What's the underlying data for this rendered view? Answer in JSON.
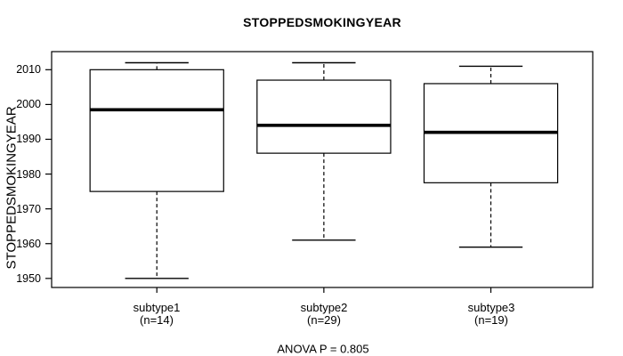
{
  "chart_data": {
    "type": "boxplot",
    "title": "STOPPEDSMOKINGYEAR",
    "ylabel": "STOPPEDSMOKINGYEAR",
    "footer": "ANOVA P = 0.805",
    "yticks": [
      2010,
      2000,
      1990,
      1980,
      1970,
      1960,
      1950
    ],
    "ylim": [
      1947.4,
      2015.2
    ],
    "xlim": [
      0.37,
      3.61
    ],
    "grid": false,
    "box_width": 0.8,
    "staple_width": 0.38,
    "whisker_style": "dashed",
    "colors": {
      "stroke": "#000000",
      "median": "#000000",
      "box_fill": "#ffffff",
      "background": "#ffffff"
    },
    "groups": [
      {
        "label": "subtype1",
        "count_label": "(n=14)",
        "n": 14,
        "position": 1,
        "whisker_low": 1950,
        "q1": 1975,
        "median": 1998.5,
        "q3": 2010,
        "whisker_high": 2012
      },
      {
        "label": "subtype2",
        "count_label": "(n=29)",
        "n": 29,
        "position": 2,
        "whisker_low": 1961,
        "q1": 1986,
        "median": 1994,
        "q3": 2007,
        "whisker_high": 2012
      },
      {
        "label": "subtype3",
        "count_label": "(n=19)",
        "n": 19,
        "position": 3,
        "whisker_low": 1959,
        "q1": 1977.5,
        "median": 1992,
        "q3": 2006,
        "whisker_high": 2011
      }
    ]
  }
}
